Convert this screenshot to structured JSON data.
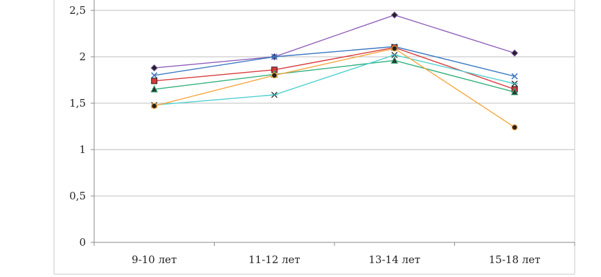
{
  "chart_data": {
    "type": "line",
    "categories": [
      "9-10 лет",
      "11-12 лет",
      "13-14 лет",
      "15-18 лет"
    ],
    "y_ticks": [
      "0",
      "0,5",
      "1",
      "1,5",
      "2",
      "2,5"
    ],
    "ylim": [
      0,
      2.5
    ],
    "grid": true,
    "legend": "none",
    "series": [
      {
        "color": "#8e5cb8",
        "marker": "diamond",
        "values": [
          1.88,
          2.0,
          2.45,
          2.04
        ]
      },
      {
        "color": "#3a78c2",
        "marker": "x",
        "values": [
          1.8,
          2.0,
          2.11,
          1.79
        ]
      },
      {
        "color": "#d83838",
        "marker": "square",
        "values": [
          1.74,
          1.86,
          2.1,
          1.65
        ]
      },
      {
        "color": "#2fb07a",
        "marker": "triangle",
        "values": [
          1.65,
          1.81,
          1.96,
          1.62
        ]
      },
      {
        "color": "#4ccfd0",
        "marker": "star",
        "values": [
          1.48,
          1.59,
          2.02,
          1.71
        ]
      },
      {
        "color": "#f5a53a",
        "marker": "circle",
        "values": [
          1.47,
          1.8,
          2.09,
          1.24
        ]
      }
    ]
  }
}
